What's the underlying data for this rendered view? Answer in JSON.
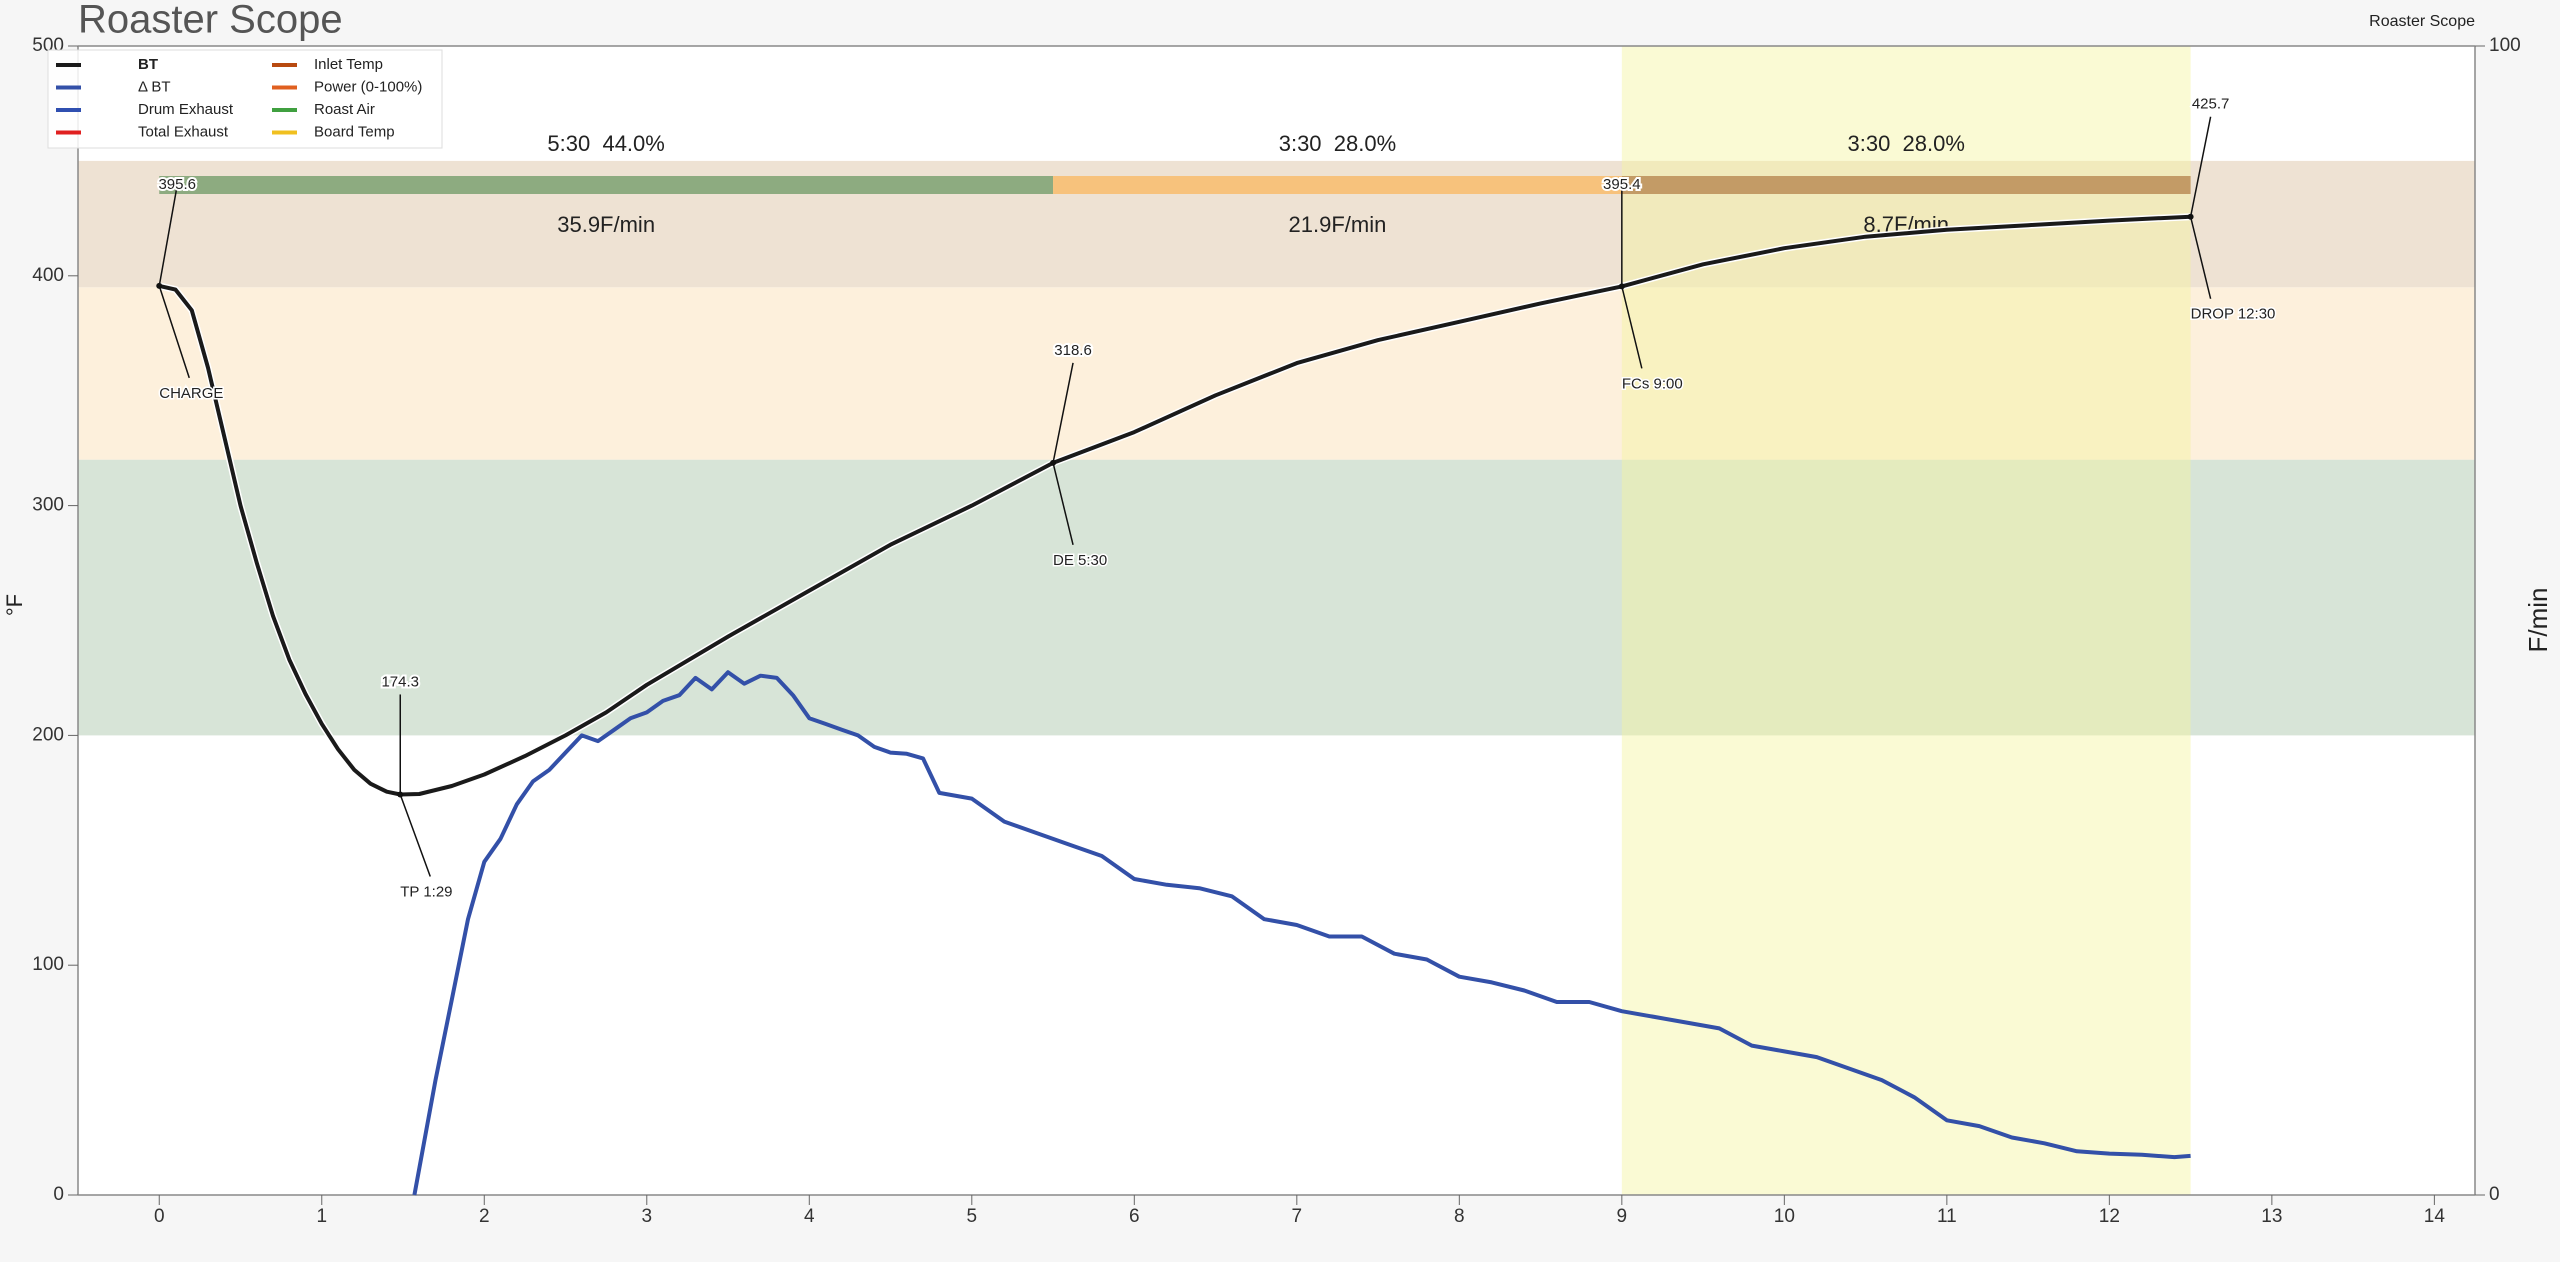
{
  "chart_data": {
    "type": "line",
    "title": "Roaster Scope",
    "watermark": "Roaster Scope",
    "ylabel": "°F",
    "y2label": "F/min",
    "xlim": [
      -0.5,
      14.25
    ],
    "xticks": [
      0,
      1,
      2,
      3,
      4,
      5,
      6,
      7,
      8,
      9,
      10,
      11,
      12,
      13,
      14
    ],
    "ylim": [
      0,
      500
    ],
    "yticks": [
      0,
      100,
      200,
      300,
      400,
      500
    ],
    "y2lim": [
      0,
      100
    ],
    "y2ticks": [
      0,
      100
    ],
    "zones": [
      {
        "ylim": [
          200,
          320
        ],
        "color": "#d7e4d7"
      },
      {
        "ylim": [
          320,
          395
        ],
        "color": "#fdf0dc"
      },
      {
        "ylim": [
          395,
          450
        ],
        "color": "#eee2d3"
      }
    ],
    "highlight": {
      "xlim": [
        9,
        12.5
      ],
      "color": "#f5f5a0"
    },
    "phases": [
      {
        "xlim": [
          0,
          5.5
        ],
        "color": "#8dab80",
        "label": "5:30  44.0%",
        "rate": "35.9F/min"
      },
      {
        "xlim": [
          5.5,
          9
        ],
        "color": "#f7c27c",
        "label": "3:30  28.0%",
        "rate": "21.9F/min"
      },
      {
        "xlim": [
          9,
          12.5
        ],
        "color": "#c39b66",
        "label": "3:30  28.0%",
        "rate": "8.7F/min"
      }
    ],
    "events": [
      {
        "label": "CHARGE",
        "x": 0,
        "y": 395.6
      },
      {
        "label": "TP 1:29",
        "x": 1.483,
        "y": 174.3
      },
      {
        "label": "DE 5:30",
        "x": 5.5,
        "y": 318.6
      },
      {
        "label": "FCs 9:00",
        "x": 9,
        "y": 395.4
      },
      {
        "label": "DROP 12:30",
        "x": 12.5,
        "y": 425.7
      }
    ],
    "series": [
      {
        "name": "BT",
        "color": "#1a1a1a",
        "x": [
          0,
          0.1,
          0.2,
          0.3,
          0.4,
          0.5,
          0.6,
          0.7,
          0.8,
          0.9,
          1.0,
          1.1,
          1.2,
          1.3,
          1.4,
          1.483,
          1.6,
          1.8,
          2.0,
          2.25,
          2.5,
          2.75,
          3.0,
          3.5,
          4.0,
          4.5,
          5.0,
          5.5,
          6.0,
          6.5,
          7.0,
          7.5,
          8.0,
          8.5,
          9.0,
          9.5,
          10.0,
          10.5,
          11.0,
          11.5,
          12.0,
          12.5
        ],
        "values": [
          395.6,
          394,
          385,
          360,
          330,
          300,
          275,
          252,
          233,
          218,
          205,
          194,
          185,
          179,
          175.5,
          174.3,
          174.5,
          178,
          183,
          191,
          200,
          210,
          222,
          243,
          263,
          283,
          300,
          318.6,
          332,
          348,
          362,
          372,
          380,
          388,
          395.4,
          405,
          412,
          417,
          420,
          422,
          424,
          425.7
        ]
      },
      {
        "name": "Δ BT",
        "color": "#3350a8",
        "axis": "y2",
        "x": [
          1.57,
          1.7,
          1.8,
          1.9,
          2.0,
          2.1,
          2.2,
          2.3,
          2.4,
          2.5,
          2.6,
          2.7,
          2.8,
          2.9,
          3.0,
          3.1,
          3.2,
          3.3,
          3.4,
          3.5,
          3.6,
          3.7,
          3.8,
          3.9,
          4.0,
          4.1,
          4.2,
          4.3,
          4.4,
          4.5,
          4.6,
          4.7,
          4.8,
          5.0,
          5.2,
          5.4,
          5.6,
          5.8,
          6.0,
          6.2,
          6.4,
          6.6,
          6.8,
          7.0,
          7.2,
          7.4,
          7.6,
          7.8,
          8.0,
          8.2,
          8.4,
          8.6,
          8.8,
          9.0,
          9.2,
          9.4,
          9.6,
          9.8,
          10.0,
          10.2,
          10.4,
          10.6,
          10.8,
          11.0,
          11.2,
          11.4,
          11.6,
          11.8,
          12.0,
          12.2,
          12.4,
          12.5
        ],
        "values": [
          0,
          10,
          17,
          24,
          29,
          31,
          34,
          36,
          37,
          38.5,
          40,
          39.5,
          40.5,
          41.5,
          42,
          43,
          43.5,
          45,
          44,
          45.5,
          44.5,
          45.2,
          45,
          43.5,
          41.5,
          41,
          40.5,
          40,
          39,
          38.5,
          38.4,
          38,
          35,
          34.5,
          32.5,
          31.5,
          30.5,
          29.5,
          27.5,
          27,
          26.7,
          26,
          24,
          23.5,
          22.5,
          22.5,
          21,
          20.5,
          19,
          18.5,
          17.8,
          16.8,
          16.8,
          16,
          15.5,
          15,
          14.5,
          13,
          12.5,
          12,
          11,
          10,
          8.5,
          6.5,
          6,
          5,
          4.5,
          3.8,
          3.6,
          3.5,
          3.3,
          3.4
        ]
      }
    ],
    "other_legend_entries": [
      {
        "name": "Drum Exhaust",
        "color": "#2f4fb0"
      },
      {
        "name": "Total Exhaust",
        "color": "#e02020"
      },
      {
        "name": "Inlet Temp",
        "color": "#b84a10"
      },
      {
        "name": "Power (0-100%)",
        "color": "#e06020"
      },
      {
        "name": "Roast Air",
        "color": "#40a040"
      },
      {
        "name": "Board Temp",
        "color": "#f0c020"
      }
    ]
  }
}
